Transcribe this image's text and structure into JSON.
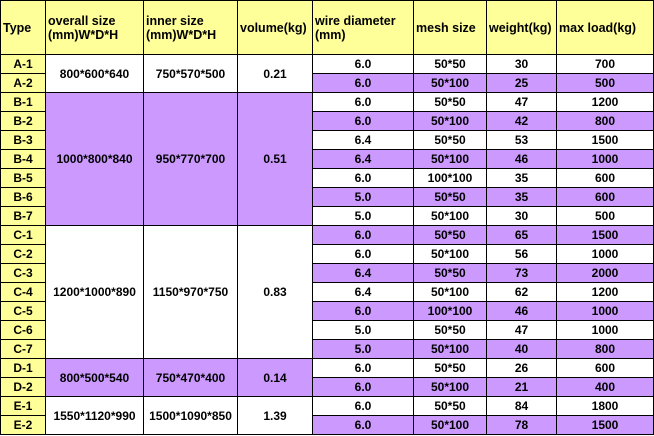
{
  "colors": {
    "header": "#FFFF99",
    "type_column": "#FFFF99",
    "highlight": "#CC99FF",
    "plain": "#FFFFFF"
  },
  "headers": [
    "Type",
    "overall size\n(mm)W*D*H",
    "inner size\n(mm)W*D*H",
    "volume(kg)",
    "wire diameter\n(mm)",
    "mesh size",
    "weight(kg)",
    "max load(kg)"
  ],
  "groups": [
    {
      "overall": "800*600*640",
      "inner": "750*570*500",
      "volume": "0.21",
      "shade": "plain",
      "rows": [
        [
          "A-1",
          "6.0",
          "50*50",
          "30",
          "700"
        ],
        [
          "A-2",
          "6.0",
          "50*100",
          "25",
          "500"
        ]
      ]
    },
    {
      "overall": "1000*800*840",
      "inner": "950*770*700",
      "volume": "0.51",
      "shade": "highlight",
      "rows": [
        [
          "B-1",
          "6.0",
          "50*50",
          "47",
          "1200"
        ],
        [
          "B-2",
          "6.0",
          "50*100",
          "42",
          "800"
        ],
        [
          "B-3",
          "6.4",
          "50*50",
          "53",
          "1500"
        ],
        [
          "B-4",
          "6.4",
          "50*100",
          "46",
          "1000"
        ],
        [
          "B-5",
          "6.0",
          "100*100",
          "35",
          "600"
        ],
        [
          "B-6",
          "5.0",
          "50*50",
          "35",
          "600"
        ],
        [
          "B-7",
          "5.0",
          "50*100",
          "30",
          "500"
        ]
      ]
    },
    {
      "overall": "1200*1000*890",
      "inner": "1150*970*750",
      "volume": "0.83",
      "shade": "plain",
      "rows": [
        [
          "C-1",
          "6.0",
          "50*50",
          "65",
          "1500"
        ],
        [
          "C-2",
          "6.0",
          "50*100",
          "56",
          "1000"
        ],
        [
          "C-3",
          "6.4",
          "50*50",
          "73",
          "2000"
        ],
        [
          "C-4",
          "6.4",
          "50*100",
          "62",
          "1200"
        ],
        [
          "C-5",
          "6.0",
          "100*100",
          "46",
          "1000"
        ],
        [
          "C-6",
          "5.0",
          "50*50",
          "47",
          "1000"
        ],
        [
          "C-7",
          "5.0",
          "50*100",
          "40",
          "800"
        ]
      ]
    },
    {
      "overall": "800*500*540",
      "inner": "750*470*400",
      "volume": "0.14",
      "shade": "highlight",
      "rows": [
        [
          "D-1",
          "6.0",
          "50*50",
          "26",
          "600"
        ],
        [
          "D-2",
          "6.0",
          "50*100",
          "21",
          "400"
        ]
      ]
    },
    {
      "overall": "1550*1120*990",
      "inner": "1500*1090*850",
      "volume": "1.39",
      "shade": "plain",
      "rows": [
        [
          "E-1",
          "6.0",
          "50*50",
          "84",
          "1800"
        ],
        [
          "E-2",
          "6.0",
          "50*100",
          "78",
          "1500"
        ]
      ]
    }
  ]
}
